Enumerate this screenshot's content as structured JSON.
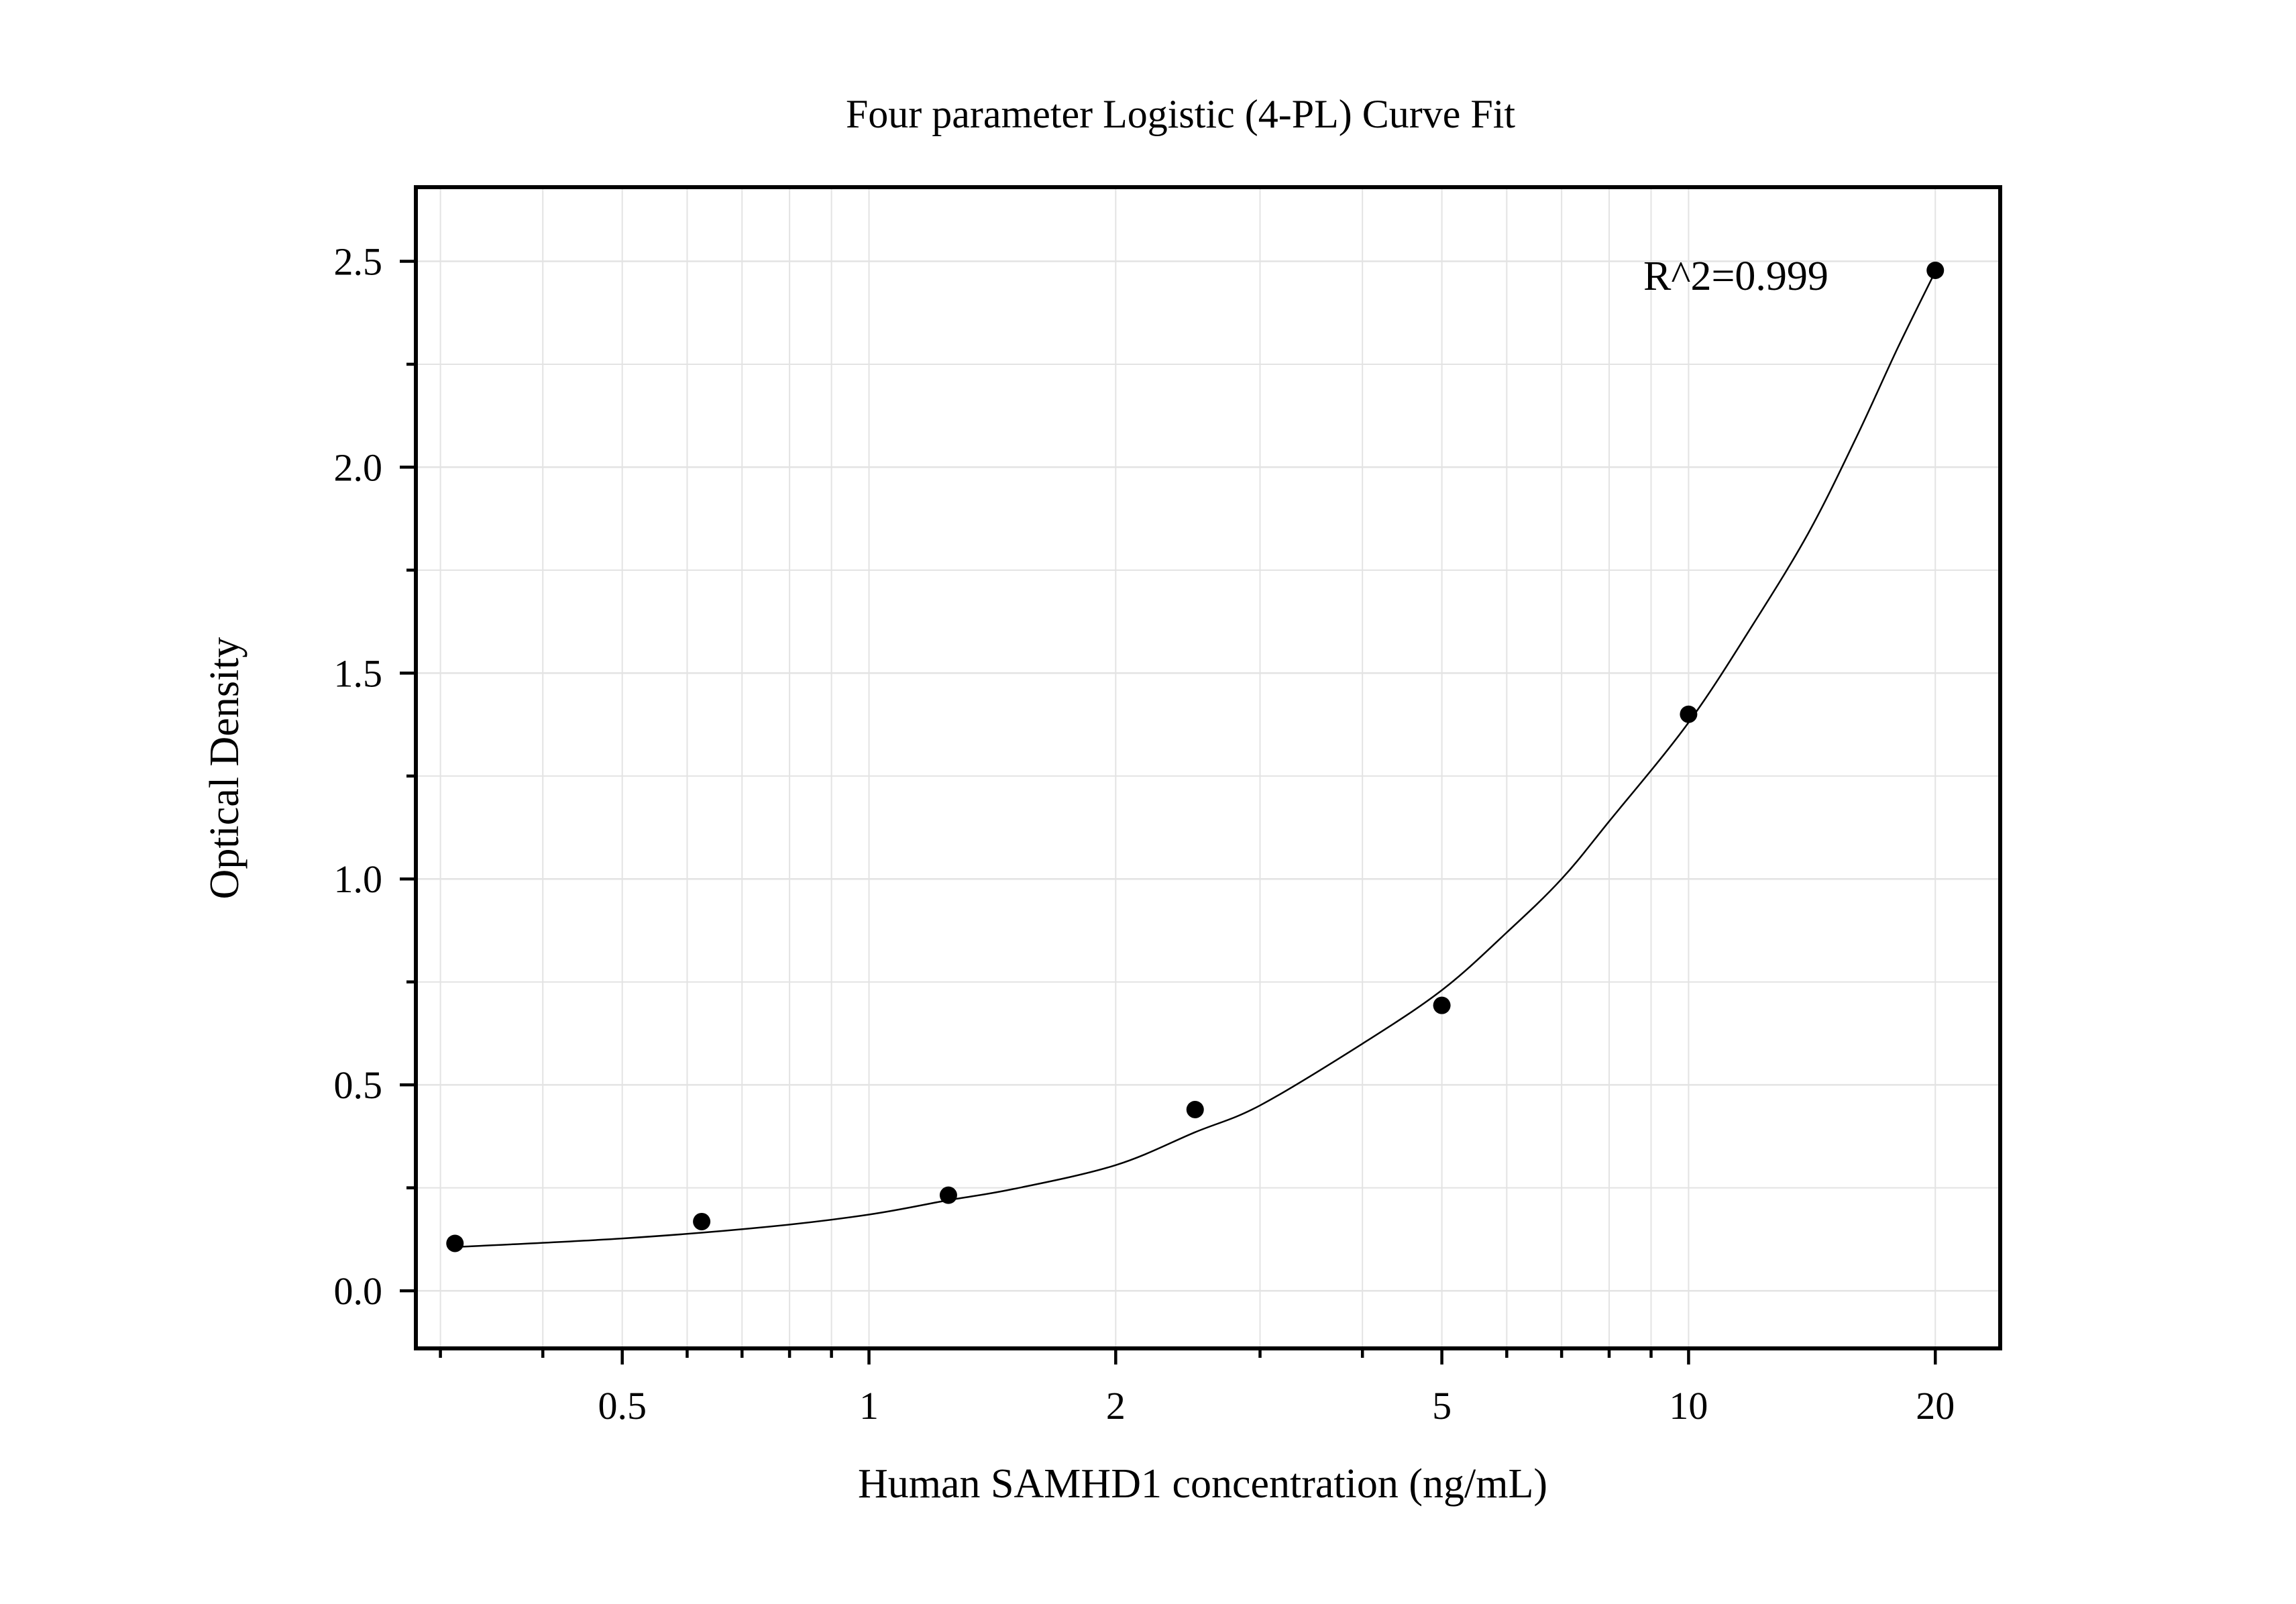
{
  "chart_data": {
    "type": "scatter",
    "title": "Four parameter Logistic (4-PL) Curve Fit",
    "xlabel": "Human SAMHD1 concentration (ng/mL)",
    "ylabel": "Optical Density",
    "x_scale": "log",
    "xlim": [
      0.28,
      24
    ],
    "ylim": [
      -0.14,
      2.68
    ],
    "x_ticks": [
      0.5,
      1,
      2,
      5,
      10,
      20
    ],
    "x_tick_labels": [
      "0.5",
      "1",
      "2",
      "5",
      "10",
      "20"
    ],
    "y_ticks": [
      0.0,
      0.5,
      1.0,
      1.5,
      2.0,
      2.5
    ],
    "y_tick_labels": [
      "0.0",
      "0.5",
      "1.0",
      "1.5",
      "2.0",
      "2.5"
    ],
    "grid": true,
    "annotation": "R^2=0.999",
    "series": [
      {
        "points": [
          {
            "x": 0.3125,
            "y": 0.115
          },
          {
            "x": 0.625,
            "y": 0.168
          },
          {
            "x": 1.25,
            "y": 0.232
          },
          {
            "x": 2.5,
            "y": 0.44
          },
          {
            "x": 5,
            "y": 0.693
          },
          {
            "x": 10,
            "y": 1.4
          },
          {
            "x": 20,
            "y": 2.478
          }
        ]
      }
    ],
    "fit_curve": {
      "model": "4PL",
      "x_range": [
        0.3125,
        20
      ],
      "points": [
        {
          "x": 0.3125,
          "y": 0.106
        },
        {
          "x": 0.5,
          "y": 0.127
        },
        {
          "x": 0.75,
          "y": 0.155
        },
        {
          "x": 1,
          "y": 0.185
        },
        {
          "x": 1.25,
          "y": 0.22
        },
        {
          "x": 1.5,
          "y": 0.247
        },
        {
          "x": 2,
          "y": 0.305
        },
        {
          "x": 2.5,
          "y": 0.385
        },
        {
          "x": 3,
          "y": 0.45
        },
        {
          "x": 4,
          "y": 0.6
        },
        {
          "x": 5,
          "y": 0.73
        },
        {
          "x": 6,
          "y": 0.87
        },
        {
          "x": 7,
          "y": 1.0
        },
        {
          "x": 8,
          "y": 1.14
        },
        {
          "x": 10,
          "y": 1.38
        },
        {
          "x": 12,
          "y": 1.62
        },
        {
          "x": 14,
          "y": 1.84
        },
        {
          "x": 16,
          "y": 2.07
        },
        {
          "x": 18,
          "y": 2.29
        },
        {
          "x": 20,
          "y": 2.475
        }
      ]
    }
  }
}
